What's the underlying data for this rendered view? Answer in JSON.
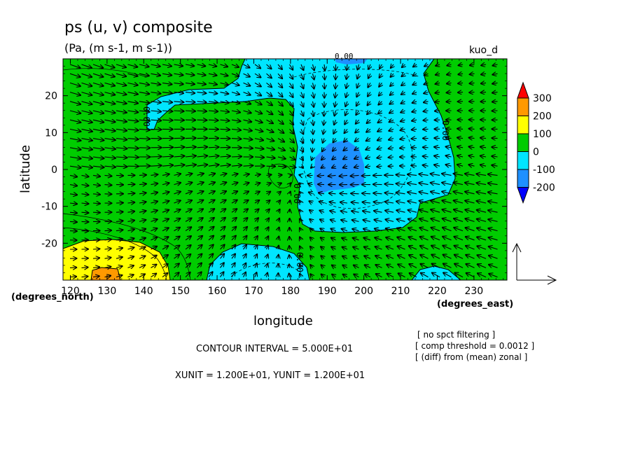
{
  "chart_data": {
    "type": "heatmap",
    "title": "ps (u, v) composite",
    "subtitle": "(Pa, (m s-1, m s-1))",
    "tag": "kuo_d",
    "xlabel": "longitude",
    "ylabel": "latitude",
    "x_unit_label": "(degrees_east)",
    "y_unit_label": "(degrees_north)",
    "xlim": [
      118,
      239
    ],
    "ylim": [
      -30,
      30
    ],
    "x_ticks": [
      120,
      130,
      140,
      150,
      160,
      170,
      180,
      190,
      200,
      210,
      220,
      230
    ],
    "y_ticks": [
      20,
      10,
      0,
      -10,
      -20
    ],
    "colorbar": {
      "levels": [
        300,
        200,
        100,
        0,
        -100,
        -200
      ],
      "colors": [
        "#ff0000",
        "#ff9900",
        "#ffff00",
        "#00cc00",
        "#00e5ff",
        "#1e90ff",
        "#0000ff"
      ]
    },
    "contour_labels": [
      "0.00",
      "0.00",
      "0.00",
      "0.00",
      "0.00"
    ],
    "notes": {
      "contour_interval": "CONTOUR INTERVAL = 5.000E+01",
      "units": "XUNIT = 1.200E+01, YUNIT = 1.200E+01",
      "filter": "[ no spct filtering ]",
      "threshold": "[ comp threshold = 0.0012 ]",
      "diff": "[ (diff) from (mean) zonal ]"
    }
  }
}
